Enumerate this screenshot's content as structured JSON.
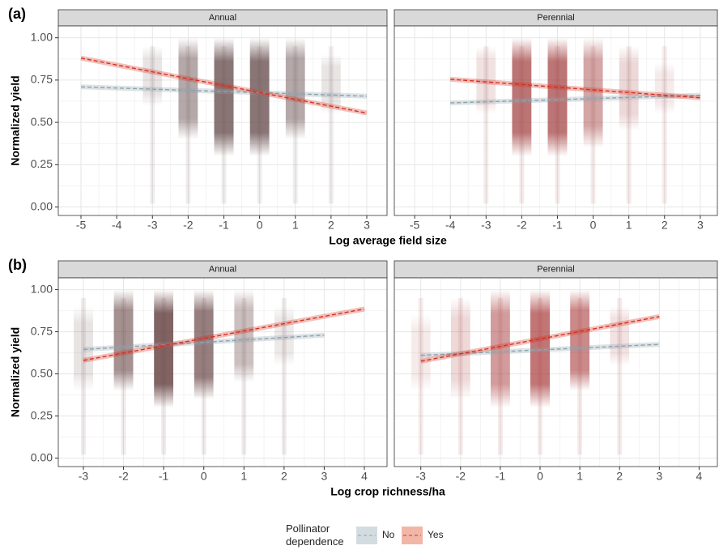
{
  "chart_data": [
    {
      "type": "line",
      "panel_label": "(a)",
      "title": "Annual",
      "y_label": "Normalized yield",
      "x_label": "Log average field size",
      "xlim": [
        -5.635,
        3.567
      ],
      "ylim": [
        -0.05,
        1.07
      ],
      "xticks": [
        -5,
        -4,
        -3,
        -2,
        -1,
        0,
        1,
        2,
        3
      ],
      "yticks": [
        {
          "value": 0,
          "label": "0.00"
        },
        {
          "value": 0.25,
          "label": "0.25"
        },
        {
          "value": 0.5,
          "label": "0.50"
        },
        {
          "value": 0.75,
          "label": "0.75"
        },
        {
          "value": 1,
          "label": "1.00"
        }
      ],
      "grid": true,
      "legend_title": "Pollinator dependence",
      "clouds": {
        "color": "#6b5252",
        "x": [
          -3,
          -2,
          -1,
          0,
          1,
          2
        ],
        "ymin": [
          0.6,
          0.4,
          0.3,
          0.3,
          0.4,
          0.55
        ],
        "ymax": [
          0.95,
          1.0,
          1.0,
          1.0,
          1.0,
          0.9
        ],
        "density": [
          0.15,
          0.5,
          0.8,
          0.8,
          0.5,
          0.15
        ]
      },
      "series": [
        {
          "name": "No",
          "color": "#8ea3ad",
          "x": [
            -5,
            3
          ],
          "values": [
            0.71,
            0.655
          ]
        },
        {
          "name": "Yes",
          "color": "#d7301f",
          "x": [
            -5,
            3
          ],
          "values": [
            0.88,
            0.555
          ]
        }
      ]
    },
    {
      "type": "line",
      "title": "Perennial",
      "xlim": [
        -5.57,
        3.48
      ],
      "ylim": [
        -0.05,
        1.07
      ],
      "xticks": [
        -5,
        -4,
        -3,
        -2,
        -1,
        0,
        1,
        2,
        3
      ],
      "yticks": [
        {
          "value": 0,
          "label": "0.00"
        },
        {
          "value": 0.25,
          "label": "0.25"
        },
        {
          "value": 0.5,
          "label": "0.50"
        },
        {
          "value": 0.75,
          "label": "0.75"
        },
        {
          "value": 1,
          "label": "1.00"
        }
      ],
      "grid": true,
      "clouds": {
        "color": "#a03a3a",
        "x": [
          -3,
          -2,
          -1,
          0,
          1,
          2
        ],
        "ymin": [
          0.55,
          0.3,
          0.3,
          0.35,
          0.45,
          0.55
        ],
        "ymax": [
          0.95,
          1.0,
          1.0,
          1.0,
          0.95,
          0.85
        ],
        "density": [
          0.15,
          0.7,
          0.7,
          0.45,
          0.2,
          0.1
        ]
      },
      "series": [
        {
          "name": "No",
          "color": "#8ea3ad",
          "x": [
            -4,
            3
          ],
          "values": [
            0.615,
            0.66
          ]
        },
        {
          "name": "Yes",
          "color": "#d7301f",
          "x": [
            -4,
            3
          ],
          "values": [
            0.755,
            0.645
          ]
        }
      ]
    },
    {
      "type": "line",
      "panel_label": "(b)",
      "title": "Annual",
      "y_label": "Normalized yield",
      "x_label": "Log crop richness/ha",
      "xlim": [
        -3.625,
        4.565
      ],
      "ylim": [
        -0.05,
        1.07
      ],
      "xticks": [
        -3,
        -2,
        -1,
        0,
        1,
        2,
        3,
        4
      ],
      "yticks": [
        {
          "value": 0,
          "label": "0.00"
        },
        {
          "value": 0.25,
          "label": "0.25"
        },
        {
          "value": 0.5,
          "label": "0.50"
        },
        {
          "value": 0.75,
          "label": "0.75"
        },
        {
          "value": 1,
          "label": "1.00"
        }
      ],
      "grid": true,
      "clouds": {
        "color": "#6b4848",
        "x": [
          -3,
          -2,
          -1,
          0,
          1,
          2
        ],
        "ymin": [
          0.4,
          0.4,
          0.3,
          0.35,
          0.45,
          0.55
        ],
        "ymax": [
          0.9,
          1.0,
          1.0,
          1.0,
          1.0,
          0.9
        ],
        "density": [
          0.15,
          0.6,
          0.85,
          0.7,
          0.35,
          0.12
        ]
      },
      "series": [
        {
          "name": "No",
          "color": "#8ea3ad",
          "x": [
            -3,
            3
          ],
          "values": [
            0.645,
            0.73
          ]
        },
        {
          "name": "Yes",
          "color": "#d7301f",
          "x": [
            -3,
            4
          ],
          "values": [
            0.58,
            0.885
          ]
        }
      ]
    },
    {
      "type": "line",
      "title": "Perennial",
      "xlim": [
        -3.666,
        4.46
      ],
      "ylim": [
        -0.05,
        1.07
      ],
      "xticks": [
        -3,
        -2,
        -1,
        0,
        1,
        2,
        3,
        4
      ],
      "yticks": [
        {
          "value": 0,
          "label": "0.00"
        },
        {
          "value": 0.25,
          "label": "0.25"
        },
        {
          "value": 0.5,
          "label": "0.50"
        },
        {
          "value": 0.75,
          "label": "0.75"
        },
        {
          "value": 1,
          "label": "1.00"
        }
      ],
      "grid": true,
      "clouds": {
        "color": "#a83a3a",
        "x": [
          -3,
          -2,
          -1,
          0,
          1,
          2
        ],
        "ymin": [
          0.4,
          0.35,
          0.3,
          0.3,
          0.4,
          0.55
        ],
        "ymax": [
          0.85,
          0.95,
          1.0,
          1.0,
          1.0,
          0.9
        ],
        "density": [
          0.1,
          0.2,
          0.5,
          0.7,
          0.6,
          0.15
        ]
      },
      "series": [
        {
          "name": "No",
          "color": "#8ea3ad",
          "x": [
            -3,
            3
          ],
          "values": [
            0.61,
            0.675
          ]
        },
        {
          "name": "Yes",
          "color": "#d7301f",
          "x": [
            -3,
            3
          ],
          "values": [
            0.575,
            0.84
          ]
        }
      ]
    }
  ]
}
